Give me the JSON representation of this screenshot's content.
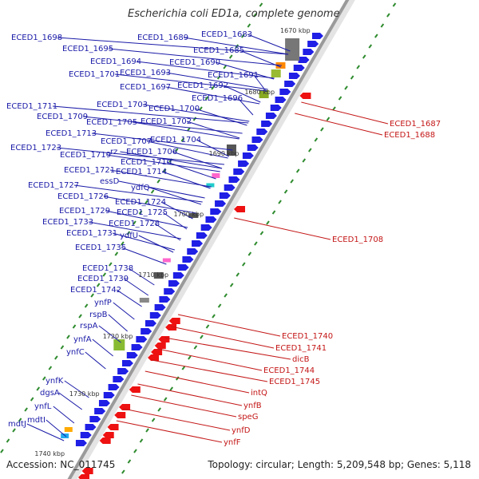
{
  "map": {
    "title": "Escherichia coli ED1a, complete genome",
    "accession": "Accession: NC_011745",
    "topology": "Topology: circular; Length: 5,209,548 bp; Genes: 5,118"
  },
  "colors": {
    "forward_cds": "#1f1fe6",
    "reverse_cds": "#ee1111",
    "forward_label": "#1a1aa8",
    "reverse_label": "#c41616",
    "backbone": "#9a9a9a",
    "gc_skew_marks": "#2e8b2e"
  },
  "kbp_ticks": [
    "1670 kbp",
    "1680 kbp",
    "1690 kbp",
    "1700 kbp",
    "1710 kbp",
    "1720 kbp",
    "1730 kbp",
    "1740 kbp"
  ],
  "forward_genes": [
    "ECED1_1698",
    "ECED1_1695",
    "ECED1_1694",
    "ECED1_1693",
    "ECED1_1701",
    "ECED1_1697",
    "ECED1_1711",
    "ECED1_1703",
    "ECED1_1709",
    "ECED1_1705",
    "ECED1_1713",
    "ECED1_1707",
    "ECED1_1723",
    "rz",
    "ECED1_1719",
    "ECED1_1721",
    "essD",
    "ECED1_1727",
    "ECED1_1726",
    "ECED1_1729",
    "ECED1_1733",
    "ECED1_1731",
    "ECED1_1735",
    "ECED1_1738",
    "ECED1_1739",
    "ECED1_1742",
    "ynfP",
    "rspB",
    "rspA",
    "ynfA",
    "ynfC",
    "ynfK",
    "dgsA",
    "ynfL",
    "mdtI",
    "mdtJ",
    "ECED1_1689",
    "ECED1_1683",
    "ECED1_1685",
    "ECED1_1690",
    "ECED1_1691",
    "ECED1_1692",
    "ECED1_1696",
    "ECED1_1700",
    "ECED1_1702",
    "ECED1_1704",
    "ECED1_1706",
    "ECED1_1710",
    "ECED1_1714",
    "ydfQ",
    "ECED1_1724",
    "ECED1_1725",
    "ECED1_1728",
    "ydfU"
  ],
  "reverse_genes": [
    "ECED1_1687",
    "ECED1_1688",
    "ECED1_1708",
    "ECED1_1740",
    "ECED1_1741",
    "dicB",
    "ECED1_1744",
    "ECED1_1745",
    "intQ",
    "ynfB",
    "speG",
    "ynfD",
    "ynfF"
  ]
}
